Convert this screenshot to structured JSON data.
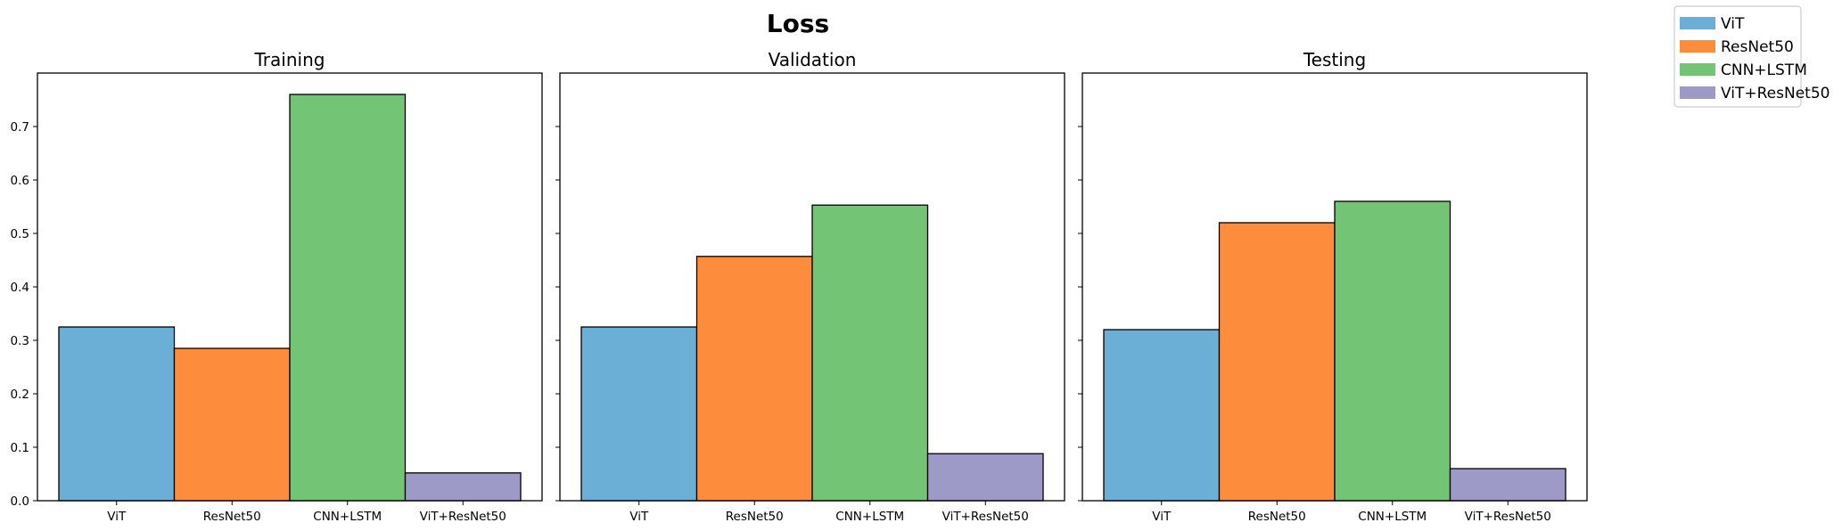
{
  "chart_data": {
    "type": "bar",
    "title": "Loss",
    "categories": [
      "ViT",
      "ResNet50",
      "CNN+LSTM",
      "ViT+ResNet50"
    ],
    "colors": [
      "#6baed6",
      "#fd8d3c",
      "#74c476",
      "#9e9ac8"
    ],
    "ylim": [
      0,
      0.8
    ],
    "yticks": [
      "0.0",
      "0.1",
      "0.2",
      "0.3",
      "0.4",
      "0.5",
      "0.6",
      "0.7"
    ],
    "shared_y": true,
    "legend": {
      "placement": "top-right",
      "entries": [
        "ViT",
        "ResNet50",
        "CNN+LSTM",
        "ViT+ResNet50"
      ]
    },
    "panels": [
      {
        "title": "Training",
        "values": [
          0.325,
          0.285,
          0.76,
          0.052
        ]
      },
      {
        "title": "Validation",
        "values": [
          0.325,
          0.457,
          0.553,
          0.088
        ]
      },
      {
        "title": "Testing",
        "values": [
          0.32,
          0.52,
          0.56,
          0.06
        ]
      }
    ]
  }
}
